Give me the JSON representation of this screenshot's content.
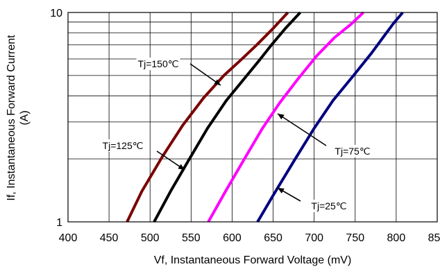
{
  "chart_data": {
    "type": "line",
    "xlabel": "Vf, Instantaneous Forward  Voltage (mV)",
    "ylabel_line1": "If, Instantaneous Forward Current",
    "ylabel_line2": "(A)",
    "xlim": [
      400,
      850
    ],
    "ylim": [
      1,
      10
    ],
    "y_scale": "log",
    "grid": true,
    "x_ticks": [
      "400",
      "450",
      "500",
      "550",
      "600",
      "650",
      "700",
      "750",
      "800",
      "850"
    ],
    "y_ticks": [
      "1",
      "10"
    ],
    "series": [
      {
        "name": "Tj=150℃",
        "color": "#7a0000",
        "points": [
          [
            472,
            1
          ],
          [
            490,
            1.4
          ],
          [
            515,
            2.05
          ],
          [
            540,
            2.9
          ],
          [
            565,
            3.9
          ],
          [
            590,
            5.0
          ],
          [
            610,
            5.9
          ],
          [
            630,
            7.0
          ],
          [
            650,
            8.4
          ],
          [
            668,
            10
          ]
        ]
      },
      {
        "name": "Tj=125℃",
        "color": "#000000",
        "points": [
          [
            505,
            1
          ],
          [
            525,
            1.4
          ],
          [
            548,
            2.0
          ],
          [
            570,
            2.8
          ],
          [
            593,
            3.8
          ],
          [
            618,
            5.0
          ],
          [
            633,
            5.9
          ],
          [
            648,
            7.0
          ],
          [
            665,
            8.4
          ],
          [
            683,
            10
          ]
        ]
      },
      {
        "name": "Tj=75℃",
        "color": "#ff00ff",
        "points": [
          [
            571,
            1
          ],
          [
            592,
            1.4
          ],
          [
            615,
            2.0
          ],
          [
            637,
            2.8
          ],
          [
            658,
            3.7
          ],
          [
            680,
            4.8
          ],
          [
            703,
            6.2
          ],
          [
            725,
            7.6
          ],
          [
            745,
            8.8
          ],
          [
            760,
            10
          ]
        ]
      },
      {
        "name": "Tj=25℃",
        "color": "#000080",
        "points": [
          [
            631,
            1
          ],
          [
            653,
            1.4
          ],
          [
            677,
            2.0
          ],
          [
            700,
            2.8
          ],
          [
            723,
            3.8
          ],
          [
            748,
            5.0
          ],
          [
            770,
            6.4
          ],
          [
            785,
            7.7
          ],
          [
            797,
            8.9
          ],
          [
            808,
            10
          ]
        ]
      }
    ],
    "annotations": [
      {
        "text": "Tj=150℃",
        "series": 0
      },
      {
        "text": "Tj=125℃",
        "series": 1
      },
      {
        "text": "Tj=75℃",
        "series": 2
      },
      {
        "text": "Tj=25℃",
        "series": 3
      }
    ]
  }
}
